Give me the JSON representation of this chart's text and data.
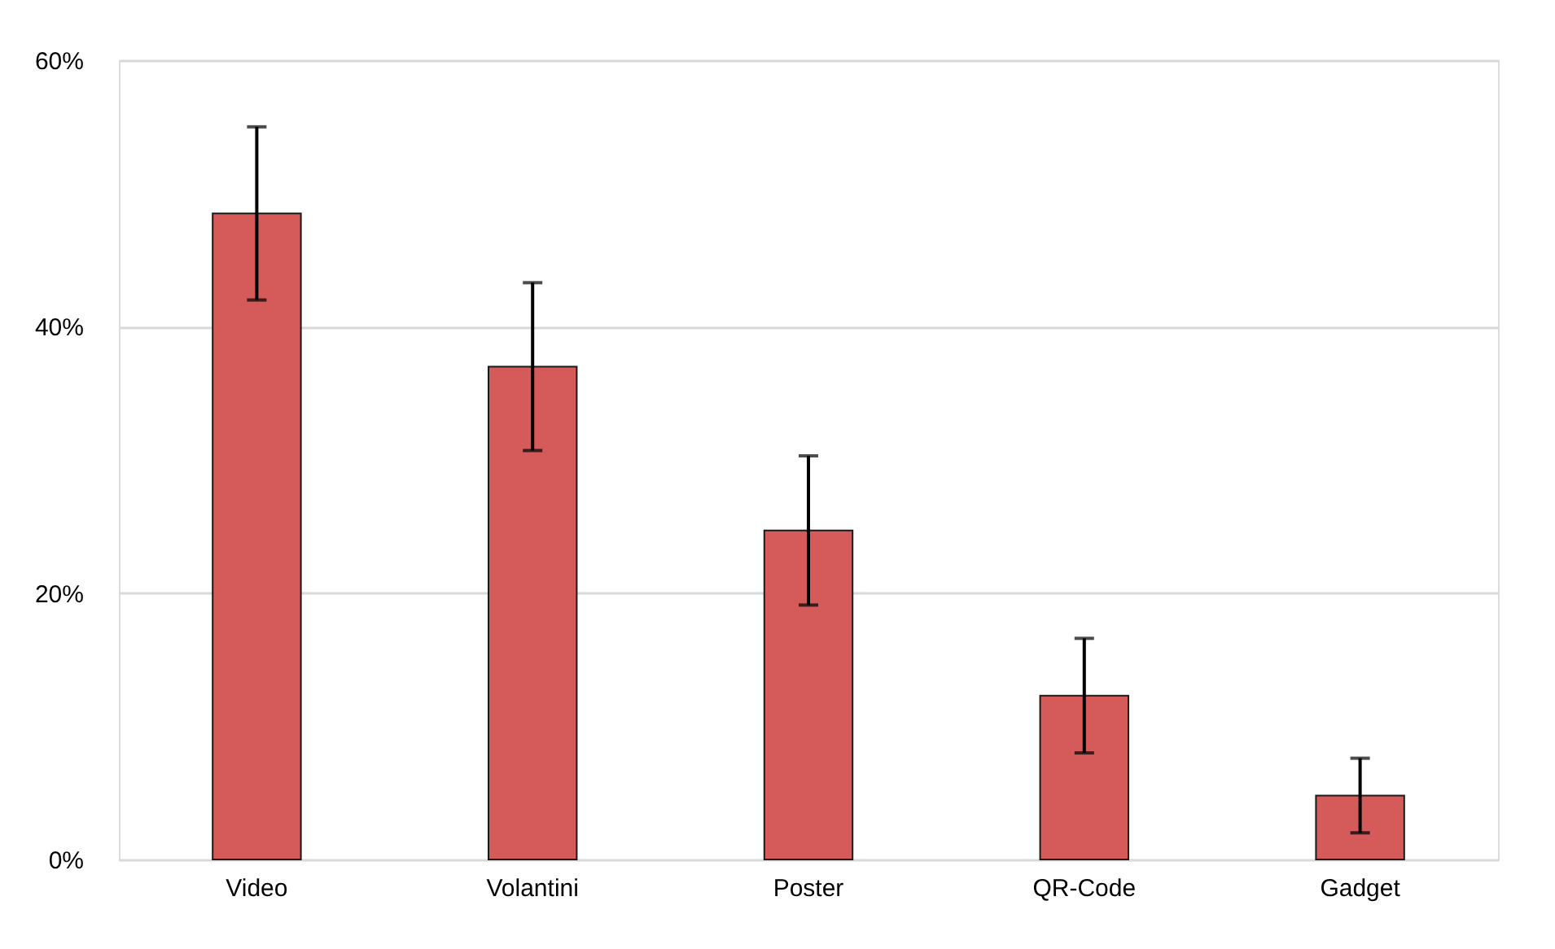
{
  "chart_data": {
    "type": "bar",
    "categories": [
      "Video",
      "Volantini",
      "Poster",
      "QR-Code",
      "Gadget"
    ],
    "values": [
      48.5,
      37.0,
      24.7,
      12.3,
      4.8
    ],
    "errors": [
      6.5,
      6.3,
      5.6,
      4.3,
      2.8
    ],
    "color": "#d55a5a",
    "ylim": [
      0,
      60
    ],
    "yticks": [
      {
        "value": 0,
        "label": "0%"
      },
      {
        "value": 20,
        "label": "20%"
      },
      {
        "value": 40,
        "label": "40%"
      },
      {
        "value": 60,
        "label": "60%"
      }
    ],
    "grid": "y"
  }
}
